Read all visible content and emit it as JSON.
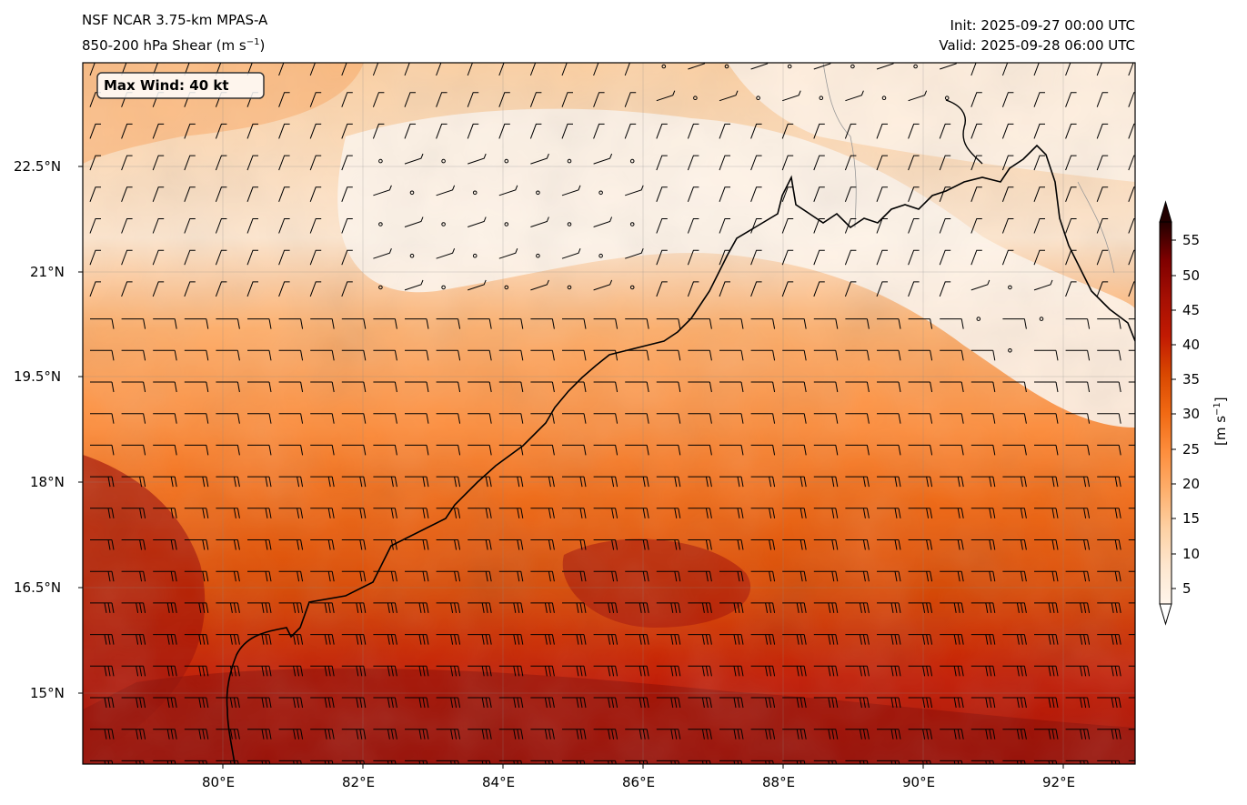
{
  "header": {
    "model": "NSF NCAR 3.75-km MPAS-A",
    "field": "850-200 hPa Shear (m s",
    "field_exp": "−1",
    "field_end": ")",
    "init": "Init: 2025-09-27 00:00 UTC",
    "valid": "Valid: 2025-09-28 06:00 UTC"
  },
  "annotation": {
    "max_wind": "Max Wind: 40 kt"
  },
  "axes": {
    "x_ticks": [
      "80°E",
      "82°E",
      "84°E",
      "86°E",
      "88°E",
      "90°E",
      "92°E"
    ],
    "y_ticks": [
      "22.5°N",
      "21°N",
      "19.5°N",
      "18°N",
      "16.5°N",
      "15°N"
    ],
    "lon_range": [
      78,
      93
    ],
    "lat_range": [
      14,
      24
    ]
  },
  "colorbar": {
    "title": "[m s",
    "title_exp": "−1",
    "title_end": "]",
    "ticks": [
      "5",
      "10",
      "15",
      "20",
      "25",
      "30",
      "35",
      "40",
      "45",
      "50",
      "55"
    ],
    "extend": "both",
    "colors": [
      "#fff5eb",
      "#fee6ce",
      "#fdd0a2",
      "#fdae6b",
      "#fd8d3c",
      "#f16913",
      "#d94801",
      "#c21a02",
      "#a50f03",
      "#7f0000",
      "#4a0000",
      "#220000"
    ]
  },
  "map_style": {
    "coastline_color": "#000000",
    "border_color": "#999999",
    "barb_color": "#000000"
  }
}
